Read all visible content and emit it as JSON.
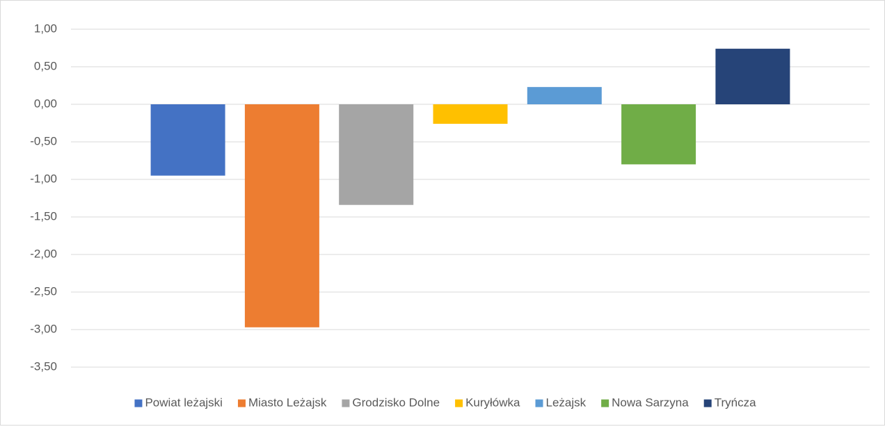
{
  "chart_data": {
    "type": "bar",
    "series": [
      {
        "name": "Powiat leżajski",
        "color": "#4472c4",
        "values": [
          -0.95
        ]
      },
      {
        "name": "Miasto Leżajsk",
        "color": "#ed7d31",
        "values": [
          -2.97
        ]
      },
      {
        "name": "Grodzisko Dolne",
        "color": "#a5a5a5",
        "values": [
          -1.34
        ]
      },
      {
        "name": "Kuryłówka",
        "color": "#ffc000",
        "values": [
          -0.26
        ]
      },
      {
        "name": "Leżajsk",
        "color": "#5b9bd5",
        "values": [
          0.23
        ]
      },
      {
        "name": "Nowa Sarzyna",
        "color": "#70ad47",
        "values": [
          -0.8
        ]
      },
      {
        "name": "Tryńcza",
        "color": "#264478",
        "values": [
          0.74
        ]
      }
    ],
    "ylim": [
      -3.5,
      1.0
    ],
    "yticks": [
      {
        "value": -3.5,
        "label": "-3,50"
      },
      {
        "value": -3.0,
        "label": "-3,00"
      },
      {
        "value": -2.5,
        "label": "-2,50"
      },
      {
        "value": -2.0,
        "label": "-2,00"
      },
      {
        "value": -1.5,
        "label": "-1,50"
      },
      {
        "value": -1.0,
        "label": "-1,00"
      },
      {
        "value": -0.5,
        "label": "-0,50"
      },
      {
        "value": 0.0,
        "label": "0,00"
      },
      {
        "value": 0.5,
        "label": "0,50"
      },
      {
        "value": 1.0,
        "label": "1,00"
      }
    ],
    "grid": true,
    "legend": "bottom"
  }
}
